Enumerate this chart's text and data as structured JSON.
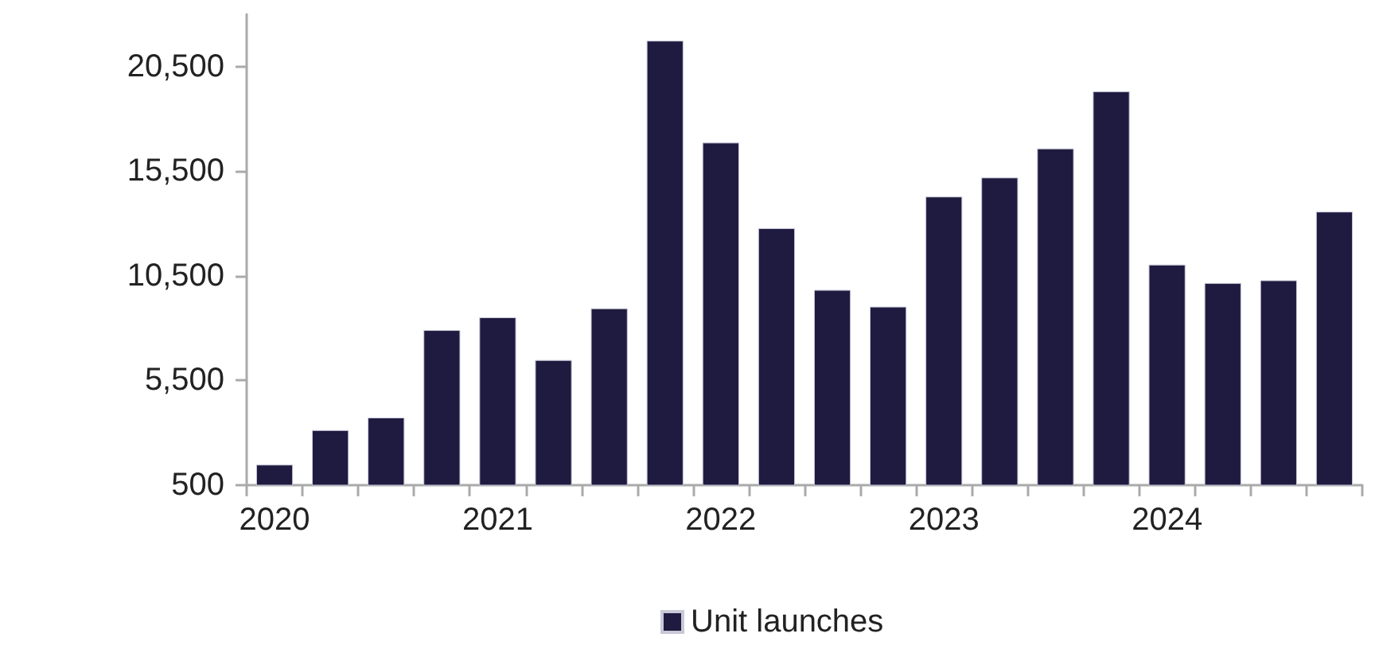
{
  "chart_data": {
    "type": "bar",
    "categories": [
      "2020",
      null,
      null,
      null,
      "2021",
      null,
      null,
      null,
      "2022",
      null,
      null,
      null,
      "2023",
      null,
      null,
      null,
      "2024",
      null,
      null,
      null
    ],
    "series": [
      {
        "name": "Unit launches",
        "color": "#1f1a40",
        "values": [
          1480,
          3130,
          3730,
          7910,
          8520,
          6480,
          8950,
          21740,
          16870,
          12780,
          9830,
          9030,
          14290,
          15200,
          16590,
          19320,
          11040,
          10160,
          10290,
          13570
        ]
      }
    ],
    "ylim": [
      500,
      23000
    ],
    "yticks": [
      500,
      {
        "value": 5500,
        "label": "5,500"
      },
      {
        "value": 10500,
        "label": "10,500"
      },
      {
        "value": 15500,
        "label": "15,500"
      },
      {
        "value": 20500,
        "label": "20,500"
      }
    ],
    "grid": false,
    "legend": "bottom"
  }
}
